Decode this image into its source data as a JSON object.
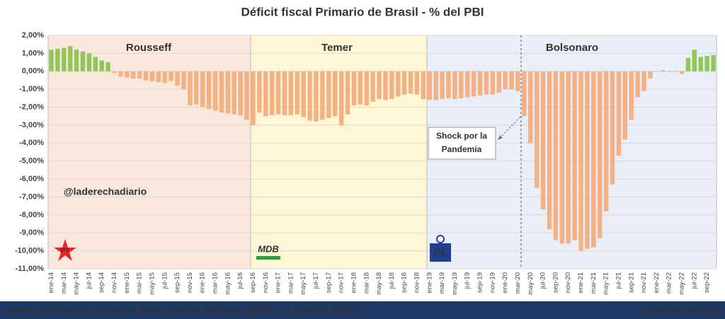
{
  "chart_data": {
    "type": "bar",
    "title": "Déficit fiscal Primario de Brasil - % del PBI",
    "categories": [
      "ene-14",
      null,
      "mar-14",
      null,
      "may-14",
      null,
      "jul-14",
      null,
      "sep-14",
      null,
      "nov-14",
      null,
      "ene-15",
      null,
      "mar-15",
      null,
      "may-15",
      null,
      "jul-15",
      null,
      "sep-15",
      null,
      "nov-15",
      null,
      "ene-16",
      null,
      "mar-16",
      null,
      "may-16",
      null,
      "jul-16",
      null,
      "sep-16",
      null,
      "nov-16",
      null,
      "ene-17",
      null,
      "mar-17",
      null,
      "may-17",
      null,
      "jul-17",
      null,
      "sep-17",
      null,
      "nov-17",
      null,
      "ene-18",
      null,
      "mar-18",
      null,
      "may-18",
      null,
      "jul-18",
      null,
      "sep-18",
      null,
      "nov-18",
      null,
      "ene-19",
      null,
      "mar-19",
      null,
      "may-19",
      null,
      "jul-19",
      null,
      "sep-19",
      null,
      "nov-19",
      null,
      "ene-20",
      null,
      "mar-20",
      null,
      "may-20",
      null,
      "jul-20",
      null,
      "sep-20",
      null,
      "nov-20",
      null,
      "ene-21",
      null,
      "mar-21",
      null,
      "may-21",
      null,
      "jul-21",
      null,
      "sep-21",
      null,
      "nov-21",
      null,
      "ene-22",
      null,
      "mar-22",
      null,
      "may-22",
      null,
      "jul-22",
      null,
      "sep-22",
      null
    ],
    "values": [
      1.2,
      1.25,
      1.3,
      1.4,
      1.2,
      1.1,
      1.0,
      0.8,
      0.6,
      0.5,
      -0.1,
      -0.3,
      -0.35,
      -0.4,
      -0.4,
      -0.5,
      -0.55,
      -0.6,
      -0.65,
      -0.55,
      -0.8,
      -1.0,
      -1.9,
      -1.85,
      -2.0,
      -2.1,
      -2.2,
      -2.3,
      -2.35,
      -2.4,
      -2.45,
      -2.7,
      -3.0,
      -2.3,
      -2.5,
      -2.45,
      -2.4,
      -2.45,
      -2.45,
      -2.4,
      -2.55,
      -2.75,
      -2.8,
      -2.7,
      -2.6,
      -2.5,
      -3.0,
      -2.4,
      -1.9,
      -1.85,
      -1.9,
      -1.7,
      -1.55,
      -1.6,
      -1.55,
      -1.4,
      -1.3,
      -1.25,
      -1.3,
      -1.55,
      -1.6,
      -1.6,
      -1.55,
      -1.5,
      -1.55,
      -1.5,
      -1.45,
      -1.4,
      -1.35,
      -1.3,
      -1.3,
      -1.2,
      -1.0,
      -1.0,
      -1.1,
      -2.5,
      -4.0,
      -6.5,
      -7.7,
      -8.8,
      -9.4,
      -9.6,
      -9.6,
      -9.4,
      -10.0,
      -9.9,
      -9.8,
      -9.3,
      -7.8,
      -6.3,
      -4.7,
      -3.8,
      -2.7,
      -1.45,
      -1.1,
      -0.4,
      0.0,
      0.05,
      -0.05,
      0.0,
      -0.15,
      0.75,
      1.2,
      0.8,
      0.85,
      0.9
    ],
    "positive_color": "#92c659",
    "negative_color": "#f4b183",
    "ylim": [
      -11,
      2
    ],
    "yticks": [
      {
        "value": 2,
        "label": "2,00%"
      },
      {
        "value": 1,
        "label": "1,00%"
      },
      {
        "value": 0,
        "label": "0,00%"
      },
      {
        "value": -1,
        "label": "-1,00%"
      },
      {
        "value": -2,
        "label": "-2,00%"
      },
      {
        "value": -3,
        "label": "-3,00%"
      },
      {
        "value": -4,
        "label": "-4,00%"
      },
      {
        "value": -5,
        "label": "-5,00%"
      },
      {
        "value": -6,
        "label": "-6,00%"
      },
      {
        "value": -7,
        "label": "-7,00%"
      },
      {
        "value": -8,
        "label": "-8,00%"
      },
      {
        "value": -9,
        "label": "-9,00%"
      },
      {
        "value": -10,
        "label": "-10,00%"
      },
      {
        "value": -11,
        "label": "-11,00%"
      }
    ],
    "grid": true,
    "periods": [
      "Rousseff",
      "Temer",
      "Bolsonaro"
    ],
    "watermark": "@laderechadiario",
    "annotation": [
      "Shock por la",
      "Pandemia"
    ],
    "logos": [
      "PT",
      "MDB",
      "PL"
    ]
  },
  "footer": {
    "source": "Fuente: elaboración en base a Banco Central de Brasil (BCB) - La Derecha Diario",
    "handle": "@laderechadiario"
  }
}
